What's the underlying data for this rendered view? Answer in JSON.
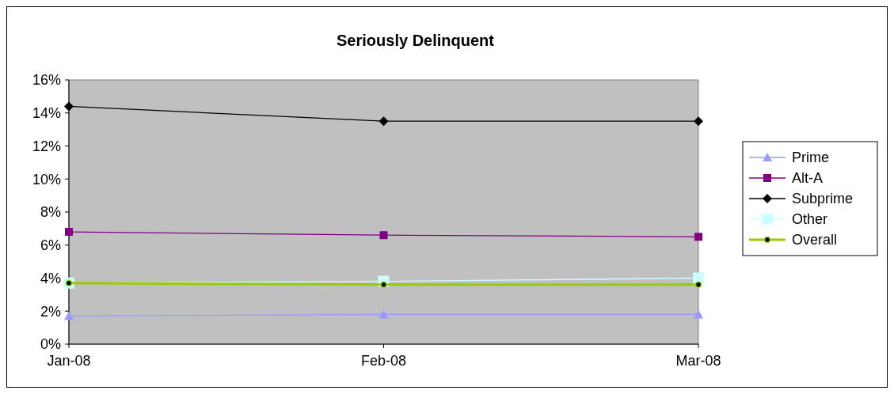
{
  "chart_data": {
    "type": "line",
    "title": "Seriously Delinquent",
    "categories": [
      "Jan-08",
      "Feb-08",
      "Mar-08"
    ],
    "ylim": [
      0,
      16
    ],
    "yticks": [
      {
        "value": 0,
        "label": "0%"
      },
      {
        "value": 2,
        "label": "2%"
      },
      {
        "value": 4,
        "label": "4%"
      },
      {
        "value": 6,
        "label": "6%"
      },
      {
        "value": 8,
        "label": "8%"
      },
      {
        "value": 10,
        "label": "10%"
      },
      {
        "value": 12,
        "label": "12%"
      },
      {
        "value": 14,
        "label": "14%"
      },
      {
        "value": 16,
        "label": "16%"
      }
    ],
    "legend": "right",
    "grid": false,
    "series": [
      {
        "name": "Prime",
        "color": "#9999ff",
        "marker": "triangle",
        "values": [
          1.7,
          1.8,
          1.8
        ]
      },
      {
        "name": "Alt-A",
        "color": "#800080",
        "marker": "square",
        "values": [
          6.8,
          6.6,
          6.5
        ]
      },
      {
        "name": "Subprime",
        "color": "#000000",
        "marker": "diamond",
        "values": [
          14.4,
          13.5,
          13.5
        ]
      },
      {
        "name": "Other",
        "color": "#ccffff",
        "marker": "square",
        "values": [
          3.7,
          3.8,
          4.0
        ]
      },
      {
        "name": "Overall",
        "color": "#99cc00",
        "marker": "circle",
        "values": [
          3.7,
          3.6,
          3.6
        ]
      }
    ]
  }
}
